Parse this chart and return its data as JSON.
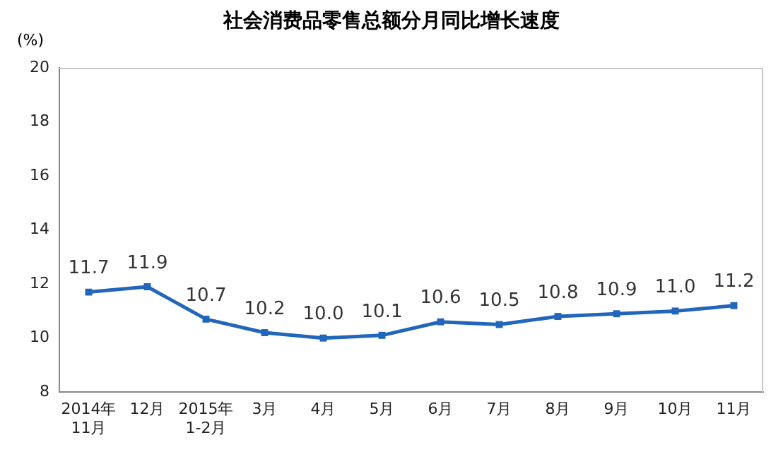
{
  "chart_data": {
    "type": "line",
    "title": "社会消费品零售总额分月同比增长速度",
    "ylabel": "(%)",
    "categories": [
      "2014年\n11月",
      "12月",
      "2015年\n1-2月",
      "3月",
      "4月",
      "5月",
      "6月",
      "7月",
      "8月",
      "9月",
      "10月",
      "11月"
    ],
    "series": [
      {
        "color": "#2266bb",
        "values": [
          11.7,
          11.9,
          10.7,
          10.2,
          10.0,
          10.1,
          10.6,
          10.5,
          10.8,
          10.9,
          11.0,
          11.2
        ],
        "value_labels": [
          "11.7",
          "11.9",
          "10.7",
          "10.2",
          "10.0",
          "10.1",
          "10.6",
          "10.5",
          "10.8",
          "10.9",
          "11.0",
          "11.2"
        ]
      }
    ],
    "ylim": [
      8,
      20
    ],
    "yticks": [
      8,
      10,
      12,
      14,
      16,
      18,
      20
    ],
    "grid": false,
    "legend": false,
    "marker": "square",
    "line_style": "solid"
  }
}
